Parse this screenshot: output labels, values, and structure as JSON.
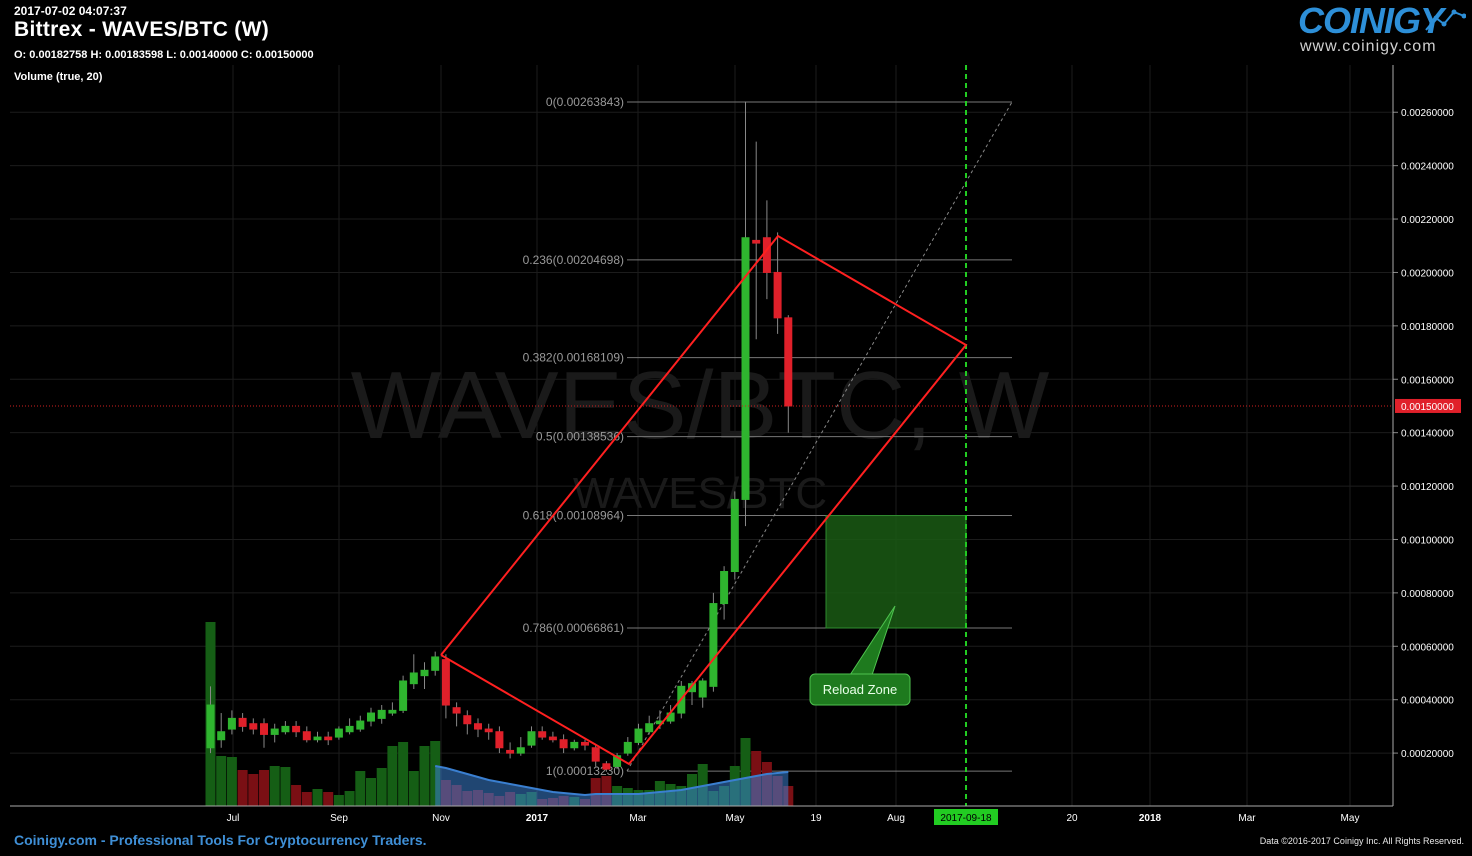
{
  "header": {
    "timestamp": "2017-07-02 04:07:37",
    "title": "Bittrex - WAVES/BTC (W)",
    "ohlc": "O: 0.00182758 H: 0.00183598 L: 0.00140000 C: 0.00150000",
    "volume_label": "Volume (true, 20)"
  },
  "logo": {
    "wordmark": "COINIGY",
    "url": "www.coinigy.com"
  },
  "watermark": {
    "large": "WAVES/BTC, W",
    "small": "WAVES/BTC"
  },
  "footer": {
    "tagline": "Coinigy.com - Professional Tools For Cryptocurrency Traders.",
    "copyright": "Data ©2016-2017 Coinigy Inc. All Rights Reserved."
  },
  "annotation": {
    "label": "Reload Zone"
  },
  "current_price_label": "0.00150000",
  "vertical_marker_label": "2017-09-18",
  "colors": {
    "up": "#2fb52f",
    "down": "#e0202a",
    "line": "#ff2020",
    "zone": "#1a5a14",
    "marker": "#22cc22",
    "volume_ma": "#3a7fd0"
  },
  "chart_data": {
    "type": "candlestick",
    "title": "Bittrex - WAVES/BTC (W)",
    "y_ticks": [
      "0.00020000",
      "0.00040000",
      "0.00060000",
      "0.00080000",
      "0.00100000",
      "0.00120000",
      "0.00140000",
      "0.00160000",
      "0.00180000",
      "0.00200000",
      "0.00220000",
      "0.00240000",
      "0.00260000"
    ],
    "x_tick_labels": [
      "Jul",
      "Sep",
      "Nov",
      "2017",
      "Mar",
      "May",
      "19",
      "Aug",
      "2017-09-18",
      "20",
      "2018",
      "Mar",
      "May"
    ],
    "fib_levels": [
      {
        "label": "0(0.00263843)",
        "value": 0.00263843
      },
      {
        "label": "0.236(0.00204698)",
        "value": 0.00204698
      },
      {
        "label": "0.382(0.00168109)",
        "value": 0.00168109
      },
      {
        "label": "0.5(0.00138536)",
        "value": 0.00138536
      },
      {
        "label": "0.618(0.00108964)",
        "value": 0.00108964
      },
      {
        "label": "0.786(0.00066861)",
        "value": 0.00066861
      },
      {
        "label": "1(0.00013230)",
        "value": 0.0001323
      }
    ],
    "candles": [
      [
        0.00022,
        0.00038,
        0.00045,
        0.0002
      ],
      [
        0.00025,
        0.00028,
        0.00035,
        0.00022
      ],
      [
        0.00029,
        0.00033,
        0.00036,
        0.00027
      ],
      [
        0.00033,
        0.0003,
        0.00035,
        0.00028
      ],
      [
        0.00031,
        0.00029,
        0.00033,
        0.00027
      ],
      [
        0.00031,
        0.00027,
        0.00033,
        0.00022
      ],
      [
        0.00027,
        0.00029,
        0.00031,
        0.00024
      ],
      [
        0.00028,
        0.0003,
        0.00032,
        0.00027
      ],
      [
        0.0003,
        0.00028,
        0.00032,
        0.00026
      ],
      [
        0.00028,
        0.00025,
        0.0003,
        0.00024
      ],
      [
        0.00025,
        0.00026,
        0.00028,
        0.00024
      ],
      [
        0.00026,
        0.00025,
        0.00028,
        0.00023
      ],
      [
        0.00026,
        0.00029,
        0.0003,
        0.00025
      ],
      [
        0.00028,
        0.0003,
        0.00033,
        0.00027
      ],
      [
        0.00029,
        0.00032,
        0.00034,
        0.00028
      ],
      [
        0.00032,
        0.00035,
        0.00037,
        0.0003
      ],
      [
        0.00033,
        0.00036,
        0.00038,
        0.00031
      ],
      [
        0.00035,
        0.00036,
        0.00039,
        0.00034
      ],
      [
        0.00036,
        0.00047,
        0.00049,
        0.00035
      ],
      [
        0.00046,
        0.0005,
        0.00057,
        0.00044
      ],
      [
        0.00049,
        0.00051,
        0.00054,
        0.00044
      ],
      [
        0.00051,
        0.00056,
        0.00058,
        0.00049
      ],
      [
        0.00055,
        0.00038,
        0.00057,
        0.00033
      ],
      [
        0.00037,
        0.00035,
        0.00039,
        0.0003
      ],
      [
        0.00034,
        0.00031,
        0.00036,
        0.00027
      ],
      [
        0.00031,
        0.00029,
        0.00033,
        0.00026
      ],
      [
        0.00029,
        0.00028,
        0.00031,
        0.00025
      ],
      [
        0.00028,
        0.00022,
        0.0003,
        0.0002
      ],
      [
        0.00021,
        0.0002,
        0.00024,
        0.00018
      ],
      [
        0.0002,
        0.00022,
        0.00026,
        0.00019
      ],
      [
        0.00023,
        0.00028,
        0.0003,
        0.00022
      ],
      [
        0.00028,
        0.00026,
        0.0003,
        0.00025
      ],
      [
        0.00026,
        0.00025,
        0.00028,
        0.00024
      ],
      [
        0.00025,
        0.00022,
        0.00027,
        0.0002
      ],
      [
        0.00022,
        0.00024,
        0.00025,
        0.00021
      ],
      [
        0.00024,
        0.00023,
        0.00025,
        0.00021
      ],
      [
        0.00022,
        0.00017,
        0.00023,
        0.00015
      ],
      [
        0.00016,
        0.00014,
        0.00017,
        0.00013
      ],
      [
        0.00015,
        0.00019,
        0.0002,
        0.00014
      ],
      [
        0.0002,
        0.00024,
        0.00026,
        0.00019
      ],
      [
        0.00024,
        0.00029,
        0.00031,
        0.00023
      ],
      [
        0.00028,
        0.00031,
        0.00034,
        0.00027
      ],
      [
        0.00031,
        0.00032,
        0.00036,
        0.00029
      ],
      [
        0.00032,
        0.00035,
        0.00038,
        0.00031
      ],
      [
        0.00035,
        0.00045,
        0.00047,
        0.00033
      ],
      [
        0.00043,
        0.00046,
        0.00047,
        0.00038
      ],
      [
        0.00041,
        0.00047,
        0.00048,
        0.00037
      ],
      [
        0.00045,
        0.00076,
        0.0008,
        0.00043
      ],
      [
        0.00076,
        0.00088,
        0.0009,
        0.0007
      ],
      [
        0.00088,
        0.00115,
        0.00118,
        0.00085
      ],
      [
        0.00115,
        0.00213,
        0.00264,
        0.00105
      ],
      [
        0.00212,
        0.00211,
        0.00249,
        0.00175
      ],
      [
        0.00213,
        0.002,
        0.00227,
        0.0019
      ],
      [
        0.002,
        0.00183,
        0.00215,
        0.00177
      ],
      [
        0.00183,
        0.0015,
        0.00184,
        0.0014
      ]
    ],
    "volume_dir": "same-as-candle"
  }
}
